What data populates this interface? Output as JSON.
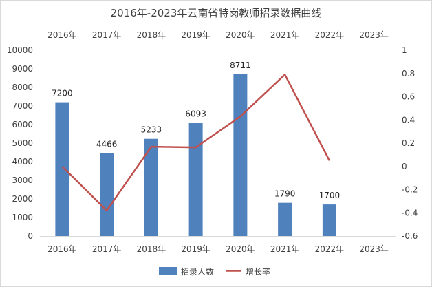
{
  "chart_data": {
    "type": "bar",
    "title": "2016年-2023年云南省特岗教师招录数据曲线",
    "categories": [
      "2016年",
      "2017年",
      "2018年",
      "2019年",
      "2020年",
      "2021年",
      "2022年",
      "2023年"
    ],
    "series": [
      {
        "name": "招录人数",
        "type": "bar",
        "axis": "left",
        "color": "#4F81BD",
        "values": [
          7200,
          4466,
          5233,
          6093,
          8711,
          1790,
          1700,
          null
        ]
      },
      {
        "name": "增长率",
        "type": "line",
        "axis": "right",
        "color": "#C0504D",
        "values": [
          0,
          -0.38,
          0.17,
          0.164,
          0.43,
          0.79,
          0.05,
          null
        ]
      }
    ],
    "y_left": {
      "min": 0,
      "max": 10000,
      "step": 1000
    },
    "y_right": {
      "min": -0.6,
      "max": 1,
      "step": 0.2
    },
    "left_ticks": [
      "0",
      "1000",
      "2000",
      "3000",
      "4000",
      "5000",
      "6000",
      "7000",
      "8000",
      "9000",
      "10000"
    ],
    "right_ticks": [
      "-0.6",
      "-0.4",
      "-0.2",
      "0",
      "0.2",
      "0.4",
      "0.6",
      "0.8",
      "1"
    ],
    "data_labels": [
      "7200",
      "4466",
      "5233",
      "6093",
      "8711",
      "1790",
      "1700"
    ],
    "grid": false,
    "legend_position": "bottom"
  }
}
